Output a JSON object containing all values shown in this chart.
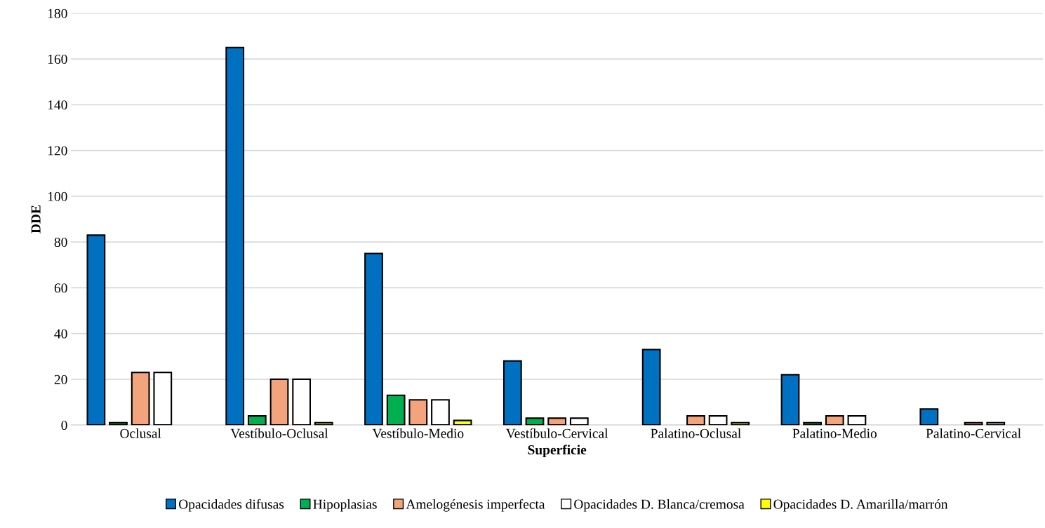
{
  "chart_data": {
    "type": "bar",
    "xlabel": "Superficie",
    "ylabel": "DDE",
    "categories": [
      "Oclusal",
      "Vestíbulo-Oclusal",
      "Vestíbulo-Medio",
      "Vestíbulo-Cervical",
      "Palatino-Oclusal",
      "Palatino-Medio",
      "Palatino-Cervical"
    ],
    "series": [
      {
        "name": "Opacidades difusas",
        "color": "#0070c0",
        "values": [
          83,
          165,
          75,
          28,
          33,
          22,
          7
        ]
      },
      {
        "name": "Hipoplasias",
        "color": "#00b050",
        "values": [
          1,
          4,
          13,
          3,
          0,
          1,
          0
        ]
      },
      {
        "name": "Amelogénesis imperfecta",
        "color": "#f4a47c",
        "values": [
          23,
          20,
          11,
          3,
          4,
          4,
          1
        ]
      },
      {
        "name": "Opacidades D. Blanca/cremosa",
        "color": "#ffffff",
        "values": [
          23,
          20,
          11,
          3,
          4,
          4,
          1
        ]
      },
      {
        "name": "Opacidades D. Amarilla/marrón",
        "color": "#ffff00",
        "values": [
          0,
          1,
          2,
          0,
          1,
          0,
          0
        ]
      }
    ],
    "ylim": [
      0,
      180
    ],
    "yticks": [
      0,
      20,
      40,
      60,
      80,
      100,
      120,
      140,
      160,
      180
    ],
    "grid": "y",
    "legend": "bottom"
  }
}
